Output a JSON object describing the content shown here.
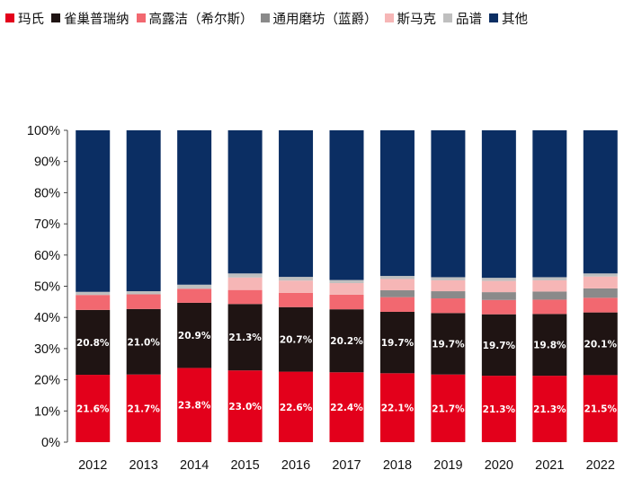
{
  "chart_data": {
    "type": "bar",
    "stacked": true,
    "normalized": true,
    "categories": [
      "2012",
      "2013",
      "2014",
      "2015",
      "2016",
      "2017",
      "2018",
      "2019",
      "2020",
      "2021",
      "2022"
    ],
    "series": [
      {
        "name": "玛氏",
        "color": "#e3001b",
        "values": [
          21.6,
          21.7,
          23.8,
          23.0,
          22.6,
          22.4,
          22.1,
          21.7,
          21.3,
          21.3,
          21.5
        ],
        "labels": [
          "21.6%",
          "21.7%",
          "23.8%",
          "23.0%",
          "22.6%",
          "22.4%",
          "22.1%",
          "21.7%",
          "21.3%",
          "21.3%",
          "21.5%"
        ]
      },
      {
        "name": "雀巢普瑞纳",
        "color": "#1f1413",
        "values": [
          20.8,
          21.0,
          20.9,
          21.3,
          20.7,
          20.2,
          19.7,
          19.7,
          19.7,
          19.8,
          20.1
        ],
        "labels": [
          "20.8%",
          "21.0%",
          "20.9%",
          "21.3%",
          "20.7%",
          "20.2%",
          "19.7%",
          "19.7%",
          "19.7%",
          "19.8%",
          "20.1%"
        ]
      },
      {
        "name": "高露洁（希尔斯）",
        "color": "#f26870",
        "values": [
          4.8,
          4.7,
          4.5,
          4.5,
          4.6,
          4.7,
          4.7,
          4.7,
          4.6,
          4.6,
          4.7
        ]
      },
      {
        "name": "通用磨坊（蓝爵）",
        "color": "#8a8a8a",
        "values": [
          0,
          0,
          0,
          0,
          0,
          0,
          2.2,
          2.3,
          2.5,
          2.6,
          3.0
        ]
      },
      {
        "name": "斯马克",
        "color": "#f6b6b6",
        "values": [
          0,
          0,
          0,
          4.0,
          3.9,
          3.7,
          3.6,
          3.5,
          3.6,
          3.6,
          3.8
        ]
      },
      {
        "name": "品谱",
        "color": "#bfbfbf",
        "values": [
          1.0,
          1.0,
          1.3,
          1.3,
          1.2,
          1.0,
          1.0,
          1.0,
          1.0,
          1.0,
          1.0
        ]
      },
      {
        "name": "其他",
        "color": "#0b2e63",
        "values": [
          51.8,
          51.6,
          49.5,
          45.9,
          47.0,
          48.0,
          46.7,
          47.1,
          47.3,
          47.1,
          45.9
        ]
      }
    ],
    "yticks": [
      "0%",
      "10%",
      "20%",
      "30%",
      "40%",
      "50%",
      "60%",
      "70%",
      "80%",
      "90%",
      "100%"
    ],
    "ylim": [
      0,
      100
    ],
    "legend_position": "top",
    "grid": false
  }
}
